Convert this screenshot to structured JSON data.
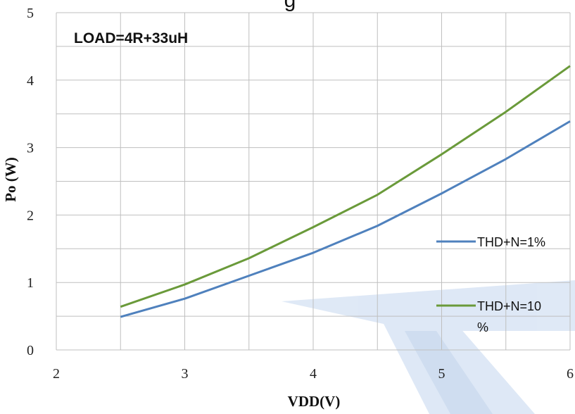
{
  "chart_data": {
    "type": "line",
    "title_fragment": "g",
    "annotation": "LOAD=4R+33uH",
    "xlabel": "VDD(V)",
    "ylabel": "Po (W)",
    "xlim": [
      2,
      6
    ],
    "ylim": [
      0,
      5
    ],
    "x_ticks": [
      "2",
      "3",
      "4",
      "5",
      "6"
    ],
    "y_ticks": [
      "0",
      "1",
      "2",
      "3",
      "4",
      "5"
    ],
    "grid": true,
    "legend_position": "right",
    "series": [
      {
        "name": "THD+N=1%",
        "color": "#4f81bd",
        "x": [
          2.5,
          3.0,
          3.5,
          4.0,
          4.5,
          5.0,
          5.5,
          6.0
        ],
        "y": [
          0.49,
          0.76,
          1.1,
          1.44,
          1.84,
          2.32,
          2.83,
          3.39
        ]
      },
      {
        "name": "THD+N=10%",
        "name_lines": [
          "THD+N=10",
          "%"
        ],
        "color": "#6a9a3a",
        "x": [
          2.5,
          3.0,
          3.5,
          4.0,
          4.5,
          5.0,
          5.5,
          6.0
        ],
        "y": [
          0.64,
          0.97,
          1.36,
          1.82,
          2.3,
          2.9,
          3.53,
          4.21
        ]
      }
    ]
  }
}
